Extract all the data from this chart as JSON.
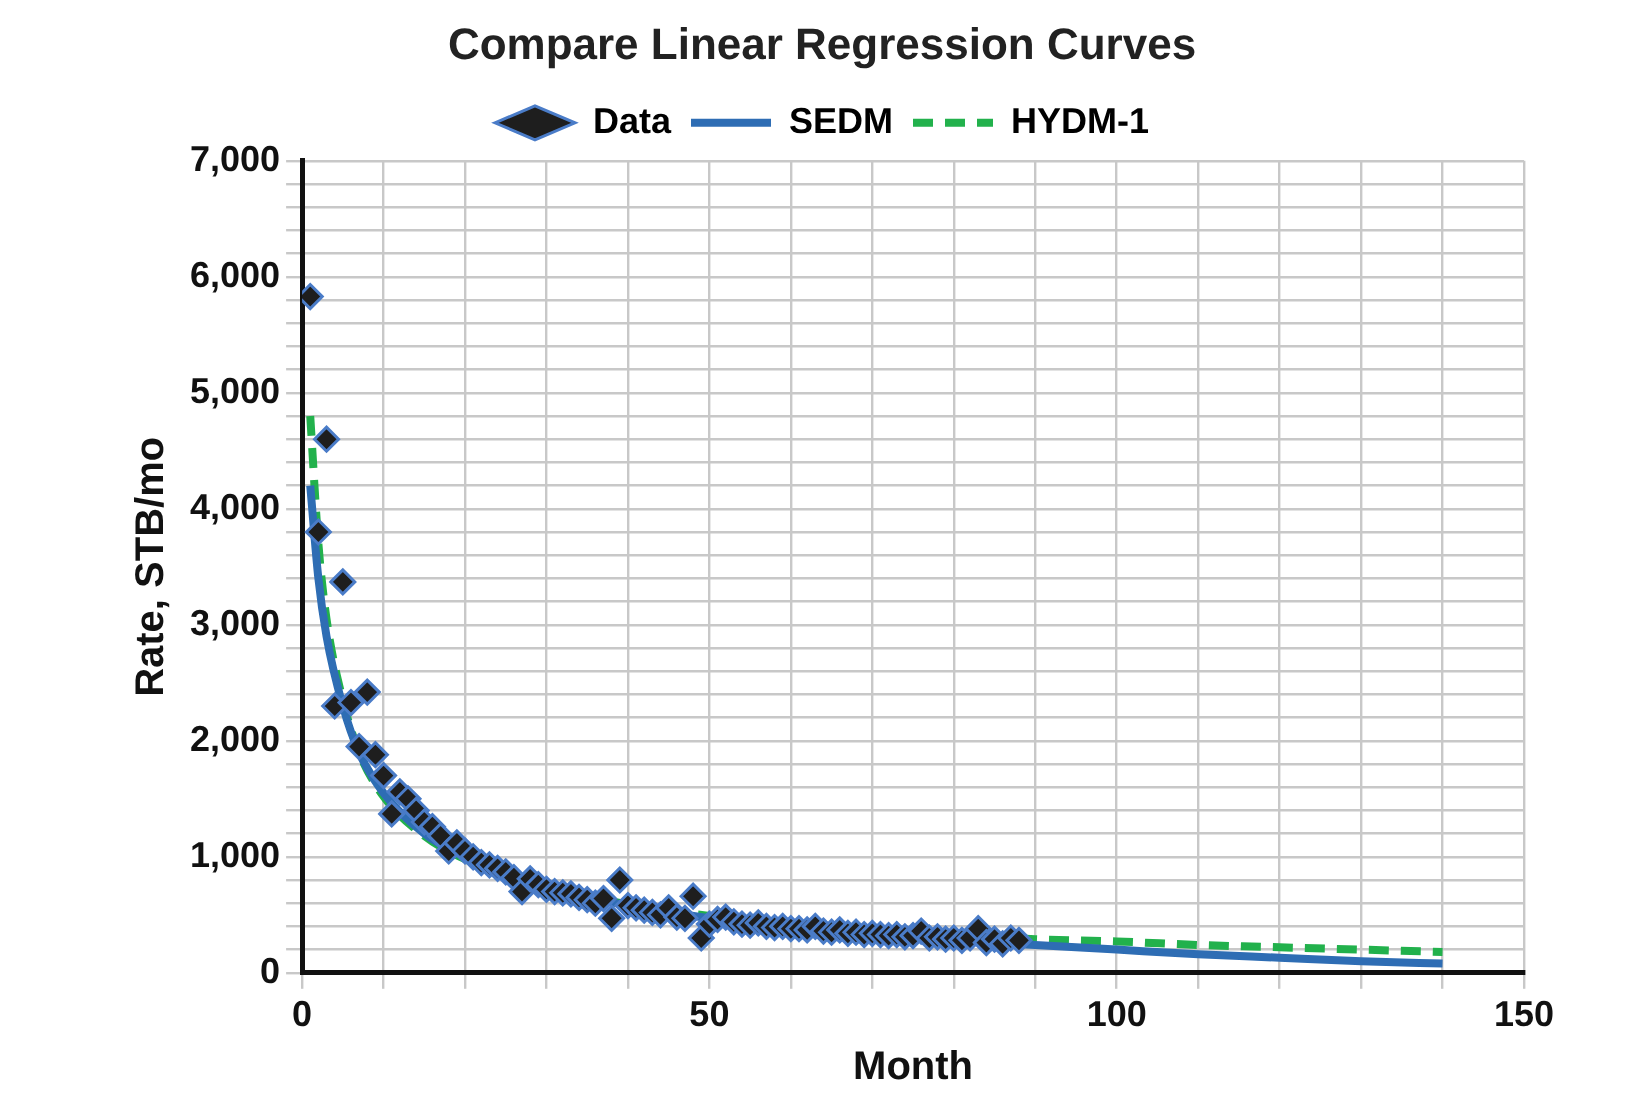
{
  "chart_data": {
    "type": "scatter",
    "title": "Compare Linear Regression Curves",
    "xlabel": "Month",
    "ylabel": "Rate, STB/mo",
    "xlim": [
      0,
      150
    ],
    "xticks": [
      0,
      {
        "value": 10,
        "label": null
      },
      {
        "value": 20,
        "label": null
      },
      {
        "value": 30,
        "label": null
      },
      {
        "value": 40,
        "label": null
      },
      50,
      {
        "value": 60,
        "label": null
      },
      {
        "value": 70,
        "label": null
      },
      {
        "value": 80,
        "label": null
      },
      {
        "value": 90,
        "label": null
      },
      100,
      {
        "value": 110,
        "label": null
      },
      {
        "value": 120,
        "label": null
      },
      {
        "value": 130,
        "label": null
      },
      {
        "value": 140,
        "label": null
      },
      150
    ],
    "ylim": [
      0,
      7000
    ],
    "yticks": [
      {
        "value": 0,
        "label": "0"
      },
      {
        "value": 200,
        "label": null
      },
      {
        "value": 400,
        "label": null
      },
      {
        "value": 600,
        "label": null
      },
      {
        "value": 800,
        "label": null
      },
      {
        "value": 1000,
        "label": "1,000"
      },
      {
        "value": 1200,
        "label": null
      },
      {
        "value": 1400,
        "label": null
      },
      {
        "value": 1600,
        "label": null
      },
      {
        "value": 1800,
        "label": null
      },
      {
        "value": 2000,
        "label": "2,000"
      },
      {
        "value": 2200,
        "label": null
      },
      {
        "value": 2400,
        "label": null
      },
      {
        "value": 2600,
        "label": null
      },
      {
        "value": 2800,
        "label": null
      },
      {
        "value": 3000,
        "label": "3,000"
      },
      {
        "value": 3200,
        "label": null
      },
      {
        "value": 3400,
        "label": null
      },
      {
        "value": 3600,
        "label": null
      },
      {
        "value": 3800,
        "label": null
      },
      {
        "value": 4000,
        "label": "4,000"
      },
      {
        "value": 4200,
        "label": null
      },
      {
        "value": 4400,
        "label": null
      },
      {
        "value": 4600,
        "label": null
      },
      {
        "value": 4800,
        "label": null
      },
      {
        "value": 5000,
        "label": "5,000"
      },
      {
        "value": 5200,
        "label": null
      },
      {
        "value": 5400,
        "label": null
      },
      {
        "value": 5600,
        "label": null
      },
      {
        "value": 5800,
        "label": null
      },
      {
        "value": 6000,
        "label": "6,000"
      },
      {
        "value": 6200,
        "label": null
      },
      {
        "value": 6400,
        "label": null
      },
      {
        "value": 6600,
        "label": null
      },
      {
        "value": 6800,
        "label": null
      },
      {
        "value": 7000,
        "label": "7,000"
      }
    ],
    "grid": true,
    "legend": "top",
    "series": [
      {
        "name": "Data",
        "type": "scatter",
        "marker": "diamond",
        "color": "#1e1e1e",
        "x": [
          1,
          2,
          3,
          4,
          5,
          6,
          7,
          8,
          9,
          10,
          11,
          12,
          13,
          14,
          15,
          16,
          17,
          18,
          19,
          20,
          21,
          22,
          23,
          24,
          25,
          26,
          27,
          28,
          29,
          30,
          31,
          32,
          33,
          34,
          35,
          36,
          37,
          38,
          39,
          40,
          41,
          42,
          43,
          44,
          45,
          46,
          47,
          48,
          49,
          50,
          51,
          52,
          53,
          54,
          55,
          56,
          57,
          58,
          59,
          60,
          61,
          62,
          63,
          64,
          65,
          66,
          67,
          68,
          69,
          70,
          71,
          72,
          73,
          74,
          75,
          76,
          77,
          78,
          79,
          80,
          81,
          82,
          83,
          84,
          85,
          86,
          87,
          88
        ],
        "values": [
          5830,
          3800,
          4600,
          2300,
          3370,
          2330,
          1950,
          2420,
          1880,
          1700,
          1370,
          1560,
          1500,
          1400,
          1300,
          1260,
          1180,
          1050,
          1120,
          1050,
          1000,
          950,
          930,
          900,
          870,
          820,
          700,
          810,
          760,
          720,
          700,
          690,
          680,
          650,
          630,
          600,
          640,
          470,
          800,
          580,
          560,
          540,
          520,
          500,
          560,
          480,
          470,
          660,
          300,
          420,
          460,
          480,
          440,
          420,
          410,
          430,
          400,
          390,
          400,
          380,
          380,
          370,
          400,
          360,
          350,
          370,
          340,
          350,
          330,
          340,
          330,
          320,
          330,
          310,
          320,
          360,
          300,
          310,
          290,
          300,
          280,
          300,
          380,
          260,
          290,
          250,
          300,
          280
        ]
      },
      {
        "name": "SEDM",
        "type": "line",
        "marker": "none",
        "line_style": "solid",
        "color": "#2e6db4",
        "x": [
          1,
          2,
          3,
          5,
          7,
          10,
          15,
          20,
          30,
          40,
          50,
          60,
          70,
          80,
          90,
          100,
          110,
          120,
          130,
          140
        ],
        "values": [
          4200,
          3400,
          2900,
          2300,
          1900,
          1550,
          1200,
          1000,
          740,
          580,
          470,
          390,
          330,
          280,
          240,
          200,
          160,
          130,
          100,
          80
        ]
      },
      {
        "name": "HYDM-1",
        "type": "line",
        "marker": "none",
        "line_style": "dashed",
        "color": "#22b14c",
        "x": [
          1,
          2,
          3,
          5,
          7,
          10,
          15,
          20,
          30,
          40,
          50,
          60,
          70,
          80,
          90,
          100,
          110,
          120,
          130,
          140
        ],
        "values": [
          4800,
          3700,
          3050,
          2350,
          1900,
          1520,
          1180,
          980,
          740,
          590,
          490,
          420,
          370,
          330,
          290,
          270,
          240,
          220,
          200,
          180
        ]
      }
    ]
  }
}
